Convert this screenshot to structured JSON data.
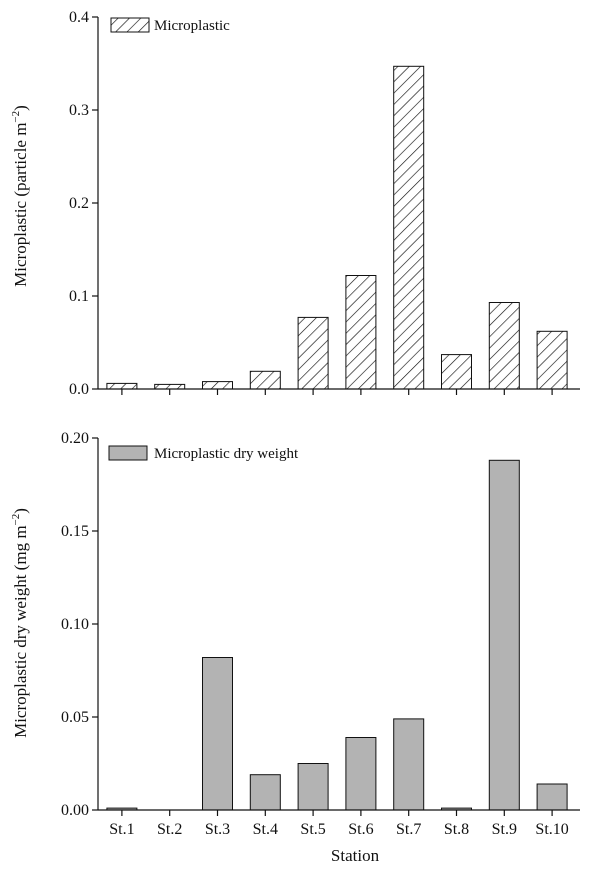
{
  "chart_data": [
    {
      "type": "bar",
      "categories": [
        "St.1",
        "St.2",
        "St.3",
        "St.4",
        "St.5",
        "St.6",
        "St.7",
        "St.8",
        "St.9",
        "St.10"
      ],
      "series": [
        {
          "name": "Microplastic",
          "values": [
            0.006,
            0.005,
            0.008,
            0.019,
            0.077,
            0.122,
            0.347,
            0.037,
            0.093,
            0.062
          ],
          "fill": "hatched"
        }
      ],
      "ylabel_main": "Microplastic (particle m",
      "ylabel_sup": "−2",
      "ylabel_close": ")",
      "ylim": [
        0,
        0.4
      ],
      "yticks": [
        "0.0",
        "0.1",
        "0.2",
        "0.3",
        "0.4"
      ],
      "ytick_values": [
        0,
        0.1,
        0.2,
        0.3,
        0.4
      ],
      "legend": "top-left"
    },
    {
      "type": "bar",
      "categories": [
        "St.1",
        "St.2",
        "St.3",
        "St.4",
        "St.5",
        "St.6",
        "St.7",
        "St.8",
        "St.9",
        "St.10"
      ],
      "series": [
        {
          "name": "Microplastic dry weight",
          "values": [
            0.001,
            0.0,
            0.082,
            0.019,
            0.025,
            0.039,
            0.049,
            0.001,
            0.188,
            0.014
          ],
          "fill": "#b3b3b3"
        }
      ],
      "ylabel_main": "Microplastic dry weight (mg m",
      "ylabel_sup": "−2",
      "ylabel_close": ")",
      "xlabel": "Station",
      "ylim": [
        0,
        0.2
      ],
      "yticks": [
        "0.00",
        "0.05",
        "0.10",
        "0.15",
        "0.20"
      ],
      "ytick_values": [
        0,
        0.05,
        0.1,
        0.15,
        0.2
      ],
      "legend": "top-left"
    }
  ],
  "colors": {
    "bar_gray": "#b3b3b3",
    "axis": "#111111"
  }
}
